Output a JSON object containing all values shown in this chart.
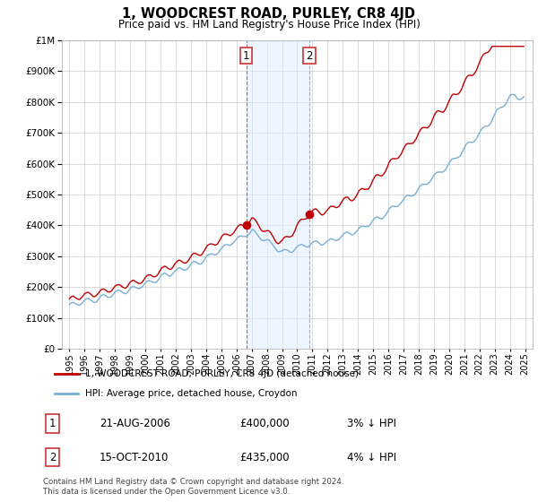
{
  "title": "1, WOODCREST ROAD, PURLEY, CR8 4JD",
  "subtitle": "Price paid vs. HM Land Registry's House Price Index (HPI)",
  "legend_line1": "1, WOODCREST ROAD, PURLEY, CR8 4JD (detached house)",
  "legend_line2": "HPI: Average price, detached house, Croydon",
  "footnote": "Contains HM Land Registry data © Crown copyright and database right 2024.\nThis data is licensed under the Open Government Licence v3.0.",
  "transaction1_date": "21-AUG-2006",
  "transaction1_price": "£400,000",
  "transaction1_hpi": "3% ↓ HPI",
  "transaction2_date": "15-OCT-2010",
  "transaction2_price": "£435,000",
  "transaction2_hpi": "4% ↓ HPI",
  "hpi_color": "#7aafd4",
  "price_color": "#c00000",
  "marker_color": "#c00000",
  "shade_color": "#ddeeff",
  "shade_alpha": 0.5,
  "dashed_color1": "#cc0000",
  "dashed_color2": "#8888aa",
  "background_color": "#ffffff",
  "ylim_min": 0,
  "ylim_max": 1000000,
  "transaction1_x": 2006.64,
  "transaction2_x": 2010.79,
  "xtick_labels": [
    "1995",
    "1996",
    "1997",
    "1998",
    "1999",
    "2000",
    "2001",
    "2002",
    "2003",
    "2004",
    "2005",
    "2006",
    "2007",
    "2008",
    "2009",
    "2010",
    "2011",
    "2012",
    "2013",
    "2014",
    "2015",
    "2016",
    "2017",
    "2018",
    "2019",
    "2020",
    "2021",
    "2022",
    "2023",
    "2024",
    "2025"
  ]
}
